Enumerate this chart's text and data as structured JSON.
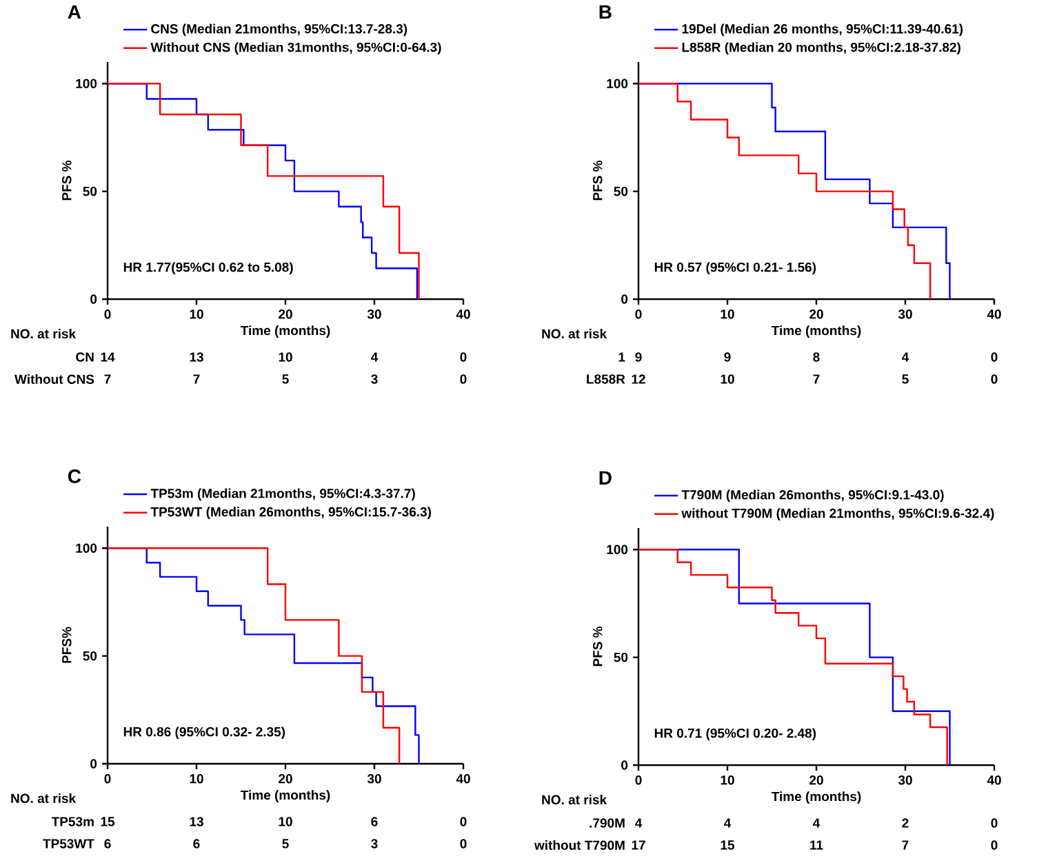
{
  "chart_data": [
    {
      "type": "step",
      "title": "A",
      "xlabel": "Time (months)",
      "ylabel": "PFS %",
      "xlim": [
        0,
        40
      ],
      "xticks": [
        0,
        10,
        20,
        30,
        40
      ],
      "ylim": [
        0,
        110
      ],
      "yticks": [
        0,
        50,
        100
      ],
      "legend": "top left",
      "series": [
        {
          "name": "CNS (Median 21months, 95%CI:13.7-28.3)",
          "color": "#0000ff",
          "x": [
            0,
            4.4,
            10,
            11.3,
            15.3,
            20,
            21,
            26,
            28.5,
            28.7,
            29.7,
            30.2,
            34.8
          ],
          "values": [
            100,
            92.9,
            85.7,
            78.6,
            71.4,
            64.3,
            50,
            42.9,
            35.7,
            28.6,
            21.4,
            14.3,
            0
          ]
        },
        {
          "name": "Without CNS (Median 31months, 95%CI:0-64.3)",
          "color": "#ff0000",
          "x": [
            0,
            5.9,
            15,
            18,
            31,
            32.8,
            35
          ],
          "values": [
            100,
            85.7,
            71.4,
            57.1,
            42.9,
            21.4,
            0
          ]
        }
      ],
      "annotations": [
        "HR 1.77(95%CI 0.62 to 5.08)",
        "NO. at risk",
        "CN",
        "14",
        "13",
        "10",
        "4",
        "0",
        "Without CNS",
        "7",
        "7",
        "5",
        "3",
        "0"
      ]
    },
    {
      "type": "step",
      "title": "B",
      "xlabel": "Time (months)",
      "ylabel": "PFS %",
      "xlim": [
        0,
        40
      ],
      "xticks": [
        0,
        10,
        20,
        30,
        40
      ],
      "ylim": [
        0,
        110
      ],
      "yticks": [
        0,
        50,
        100
      ],
      "legend": "top left",
      "series": [
        {
          "name": "19Del (Median 26 months, 95%CI:11.39-40.61)",
          "color": "#0000ff",
          "x": [
            0,
            15,
            15.4,
            21,
            26,
            28.6,
            34.6,
            35
          ],
          "values": [
            100,
            88.9,
            77.8,
            55.6,
            44.4,
            33.3,
            16.7,
            0
          ]
        },
        {
          "name": "L858R (Median 20 months, 95%CI:2.18-37.82)",
          "color": "#ff0000",
          "x": [
            0,
            4.4,
            5.9,
            10,
            11.3,
            18,
            20,
            28.6,
            29.9,
            30.3,
            31,
            32.8
          ],
          "values": [
            100,
            91.7,
            83.3,
            75,
            66.7,
            58.3,
            50,
            41.7,
            33.3,
            25,
            16.7,
            0
          ]
        }
      ],
      "annotations": [
        "HR 0.57 (95%CI 0.21- 1.56)",
        "NO. at risk",
        "1",
        "9",
        "9",
        "8",
        "4",
        "0",
        "L858R",
        "12",
        "10",
        "7",
        "5",
        "0"
      ]
    },
    {
      "type": "step",
      "title": "C",
      "xlabel": "Time (months)",
      "ylabel": "PFS%",
      "xlim": [
        0,
        40
      ],
      "xticks": [
        0,
        10,
        20,
        30,
        40
      ],
      "ylim": [
        0,
        110
      ],
      "yticks": [
        0,
        50,
        100
      ],
      "legend": "top left",
      "series": [
        {
          "name": "TP53m (Median 21months, 95%CI:4.3-37.7)",
          "color": "#0000ff",
          "x": [
            0,
            4.4,
            5.9,
            10,
            11.3,
            15,
            15.4,
            21,
            28.6,
            29.8,
            30.2,
            34.6,
            35
          ],
          "values": [
            100,
            93.3,
            86.7,
            80,
            73.3,
            66.7,
            60,
            46.7,
            40,
            33.3,
            26.7,
            13.3,
            0
          ]
        },
        {
          "name": "TP53WT (Median 26months, 95%CI:15.7-36.3)",
          "color": "#ff0000",
          "x": [
            0,
            18,
            20,
            26,
            28.6,
            31,
            32.8
          ],
          "values": [
            100,
            83.3,
            66.7,
            50,
            33.3,
            16.7,
            0
          ]
        }
      ],
      "annotations": [
        "HR 0.86 (95%CI 0.32- 2.35)",
        "NO. at risk",
        "TP53m",
        "15",
        "13",
        "10",
        "6",
        "0",
        "TP53WT",
        "6",
        "6",
        "5",
        "3",
        "0"
      ]
    },
    {
      "type": "step",
      "title": "D",
      "xlabel": "Time (months)",
      "ylabel": "PFS %",
      "xlim": [
        0,
        40
      ],
      "xticks": [
        0,
        10,
        20,
        30,
        40
      ],
      "ylim": [
        0,
        110
      ],
      "yticks": [
        0,
        50,
        100
      ],
      "legend": "top left",
      "series": [
        {
          "name": "T790M (Median 26months,  95%CI:9.1-43.0)",
          "color": "#0000ff",
          "x": [
            0,
            11.3,
            26,
            28.6,
            35
          ],
          "values": [
            100,
            75,
            50,
            25,
            0
          ]
        },
        {
          "name": "without T790M (Median 21months,  95%CI:9.6-32.4)",
          "color": "#ff0000",
          "x": [
            0,
            4.4,
            5.9,
            10,
            15,
            15.4,
            18,
            20,
            21,
            28.6,
            29.8,
            30.2,
            31,
            32.8,
            34.7
          ],
          "values": [
            100,
            94.1,
            88.2,
            82.4,
            76.5,
            70.6,
            64.7,
            58.8,
            47.1,
            41.2,
            35.3,
            29.4,
            23.5,
            17.6,
            0
          ]
        }
      ],
      "annotations": [
        "HR 0.71 (95%CI 0.20- 2.48)",
        "NO. at risk",
        ".790M",
        "4",
        "4",
        "4",
        "2",
        "0",
        "without T790M",
        "17",
        "15",
        "11",
        "7",
        "0"
      ]
    }
  ]
}
